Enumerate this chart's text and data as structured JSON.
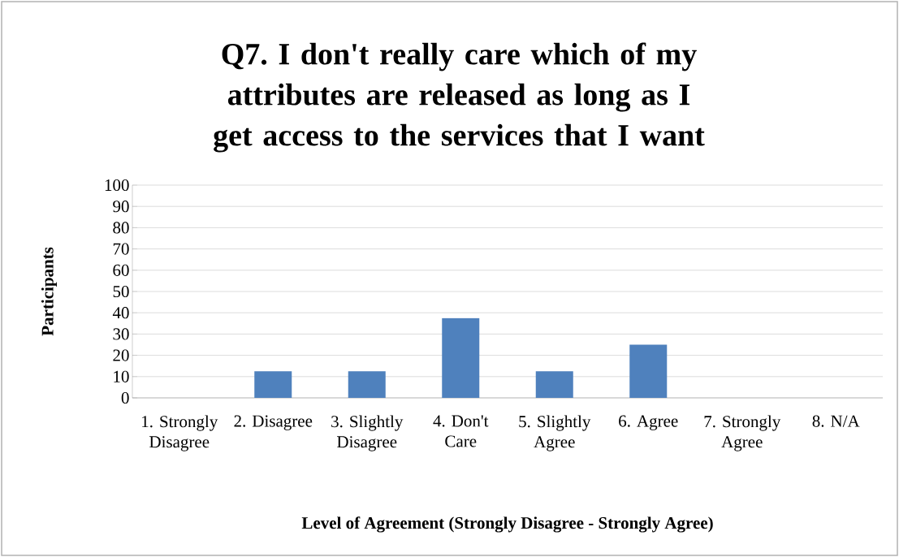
{
  "chart_data": {
    "type": "bar",
    "title": "Q7. I don't really care which of my attributes are released as long as I get access to the services that I want",
    "xlabel": "Level of Agreement (Strongly Disagree - Strongly Agree)",
    "ylabel": "Participants",
    "categories": [
      "1. Strongly Disagree",
      "2. Disagree",
      "3. Slightly Disagree",
      "4. Don't Care",
      "5. Slightly Agree",
      "6. Agree",
      "7. Strongly Agree",
      "8. N/A"
    ],
    "values": [
      0,
      12.5,
      12.5,
      37.5,
      12.5,
      25,
      0,
      0
    ],
    "color": "#4f81bd",
    "ylim": [
      0,
      100
    ],
    "yticks": [
      0,
      10,
      20,
      30,
      40,
      50,
      60,
      70,
      80,
      90,
      100
    ],
    "grid": "y"
  }
}
